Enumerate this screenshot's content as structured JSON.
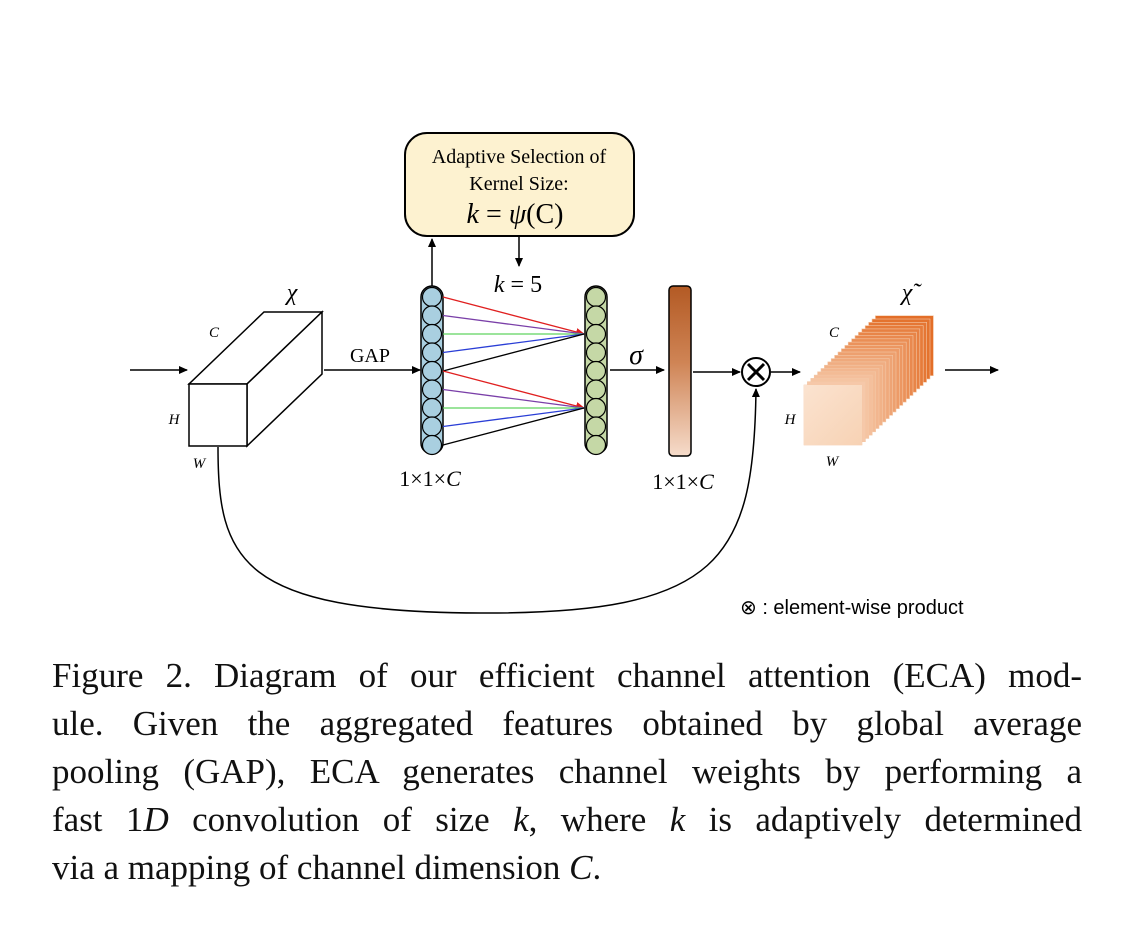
{
  "diagram": {
    "adaptive_box": {
      "line1": "Adaptive Selection of",
      "line2": "Kernel Size:",
      "formula_k": "k",
      "formula_eq": " = ",
      "formula_psi": "ψ",
      "formula_arg": "(C)"
    },
    "k_label": {
      "k": "k",
      "eq": " = 5"
    },
    "input_symbol": "χ",
    "output_symbol": "χ̃",
    "input_dims": {
      "c": "C",
      "h": "H",
      "w": "W"
    },
    "output_dims": {
      "c": "C",
      "h": "H",
      "w": "W"
    },
    "gap_label": "GAP",
    "sigma_label": "σ",
    "size_label_left": {
      "prefix": "1×1×",
      "c": "C"
    },
    "size_label_right": {
      "prefix": "1×1×",
      "c": "C"
    },
    "otimes_symbol": "⊗",
    "legend": "⊗ : element-wise product",
    "colors": {
      "box_fill": "#fdf2d0",
      "blue_circle": "#a9cfe0",
      "green_circle": "#c5d8a6",
      "red_line": "#e02020",
      "purple_line": "#7a3fa8",
      "green_line": "#5fd35f",
      "blue_line": "#2a3ed6",
      "black_line": "#000000",
      "bar_top": "#b35a24",
      "bar_bottom": "#f6dccb"
    }
  },
  "caption": {
    "line1": "Figure 2. Diagram of our efficient channel attention (ECA) mod-",
    "line2": "ule.  Given the aggregated features obtained by global average",
    "line3": "pooling (GAP), ECA generates channel weights by performing a",
    "line4_a": "fast 1",
    "line4_d": "D",
    "line4_b": " convolution of size ",
    "line4_k1": "k",
    "line4_c": ", where ",
    "line4_k2": "k",
    "line4_d2": " is adaptively determined",
    "line5_a": "via a mapping of channel dimension ",
    "line5_c": "C",
    "line5_b": "."
  }
}
